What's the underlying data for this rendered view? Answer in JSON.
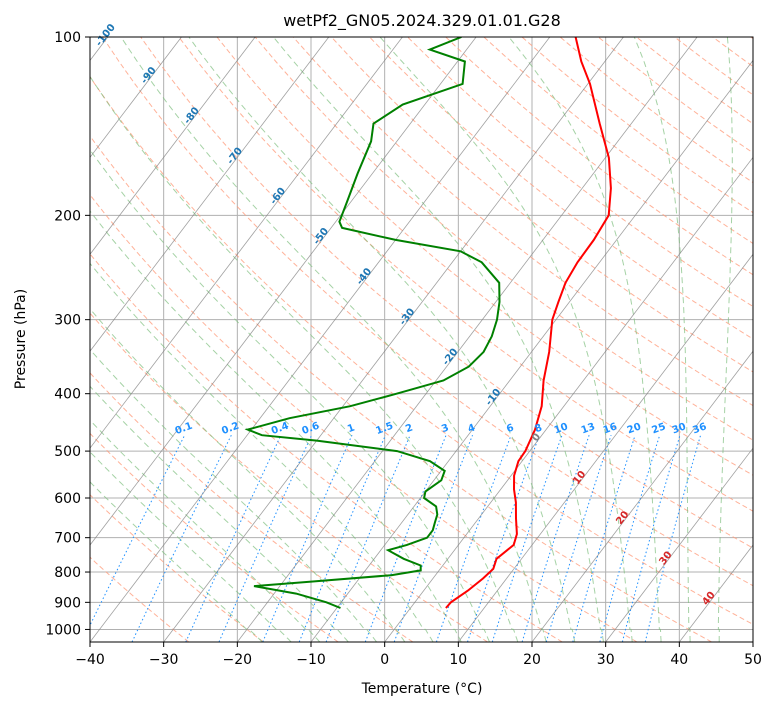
{
  "chart_data": {
    "type": "line",
    "subtype": "skew-t log-p diagram",
    "title": "wetPf2_GN05.2024.329.01.01.G28",
    "xlabel": "Temperature (°C)",
    "ylabel": "Pressure (hPa)",
    "xlim": [
      -40,
      50
    ],
    "ylim": [
      1050,
      100
    ],
    "y_scale": "log",
    "x_ticks": [
      "−40",
      "−30",
      "−20",
      "−10",
      "0",
      "10",
      "20",
      "30",
      "40",
      "50"
    ],
    "x_tick_values": [
      -40,
      -30,
      -20,
      -10,
      0,
      10,
      20,
      30,
      40,
      50
    ],
    "y_ticks": [
      "100",
      "200",
      "300",
      "400",
      "500",
      "600",
      "700",
      "800",
      "900",
      "1000"
    ],
    "y_tick_values": [
      100,
      200,
      300,
      400,
      500,
      600,
      700,
      800,
      900,
      1000
    ],
    "grid": true,
    "colors": {
      "temperature": "#ff0000",
      "dewpoint": "#008000",
      "dry_adiabat": "#ff9f80",
      "moist_adiabat": "#7fbf7f",
      "mixing_ratio": "#1e90ff",
      "isotherm": "#808080",
      "dry_adiabat_label": "#1f77b4",
      "warm_label": "#d62728"
    },
    "series": [
      {
        "color": "#ff0000",
        "pressure": [
          920,
          900,
          860,
          820,
          790,
          760,
          720,
          690,
          650,
          610,
          580,
          550,
          520,
          500,
          460,
          420,
          380,
          340,
          300,
          280,
          260,
          240,
          220,
          200,
          180,
          160,
          140,
          120,
          110,
          100
        ],
        "temperature": [
          4.8,
          4.9,
          6.0,
          6.8,
          7.2,
          6.6,
          7.5,
          6.8,
          5.1,
          3.4,
          1.8,
          0.4,
          -0.5,
          -0.6,
          -1.5,
          -3.0,
          -5.4,
          -7.6,
          -10.5,
          -11.5,
          -12.5,
          -13.0,
          -13.1,
          -13.6,
          -16.1,
          -19.5,
          -24.3,
          -29.7,
          -33.2,
          -36.5
        ]
      },
      {
        "color": "#008000",
        "pressure": [
          920,
          900,
          870,
          845,
          830,
          810,
          795,
          780,
          760,
          735,
          720,
          700,
          680,
          660,
          640,
          620,
          600,
          585,
          560,
          540,
          520,
          500,
          480,
          470,
          460,
          440,
          420,
          400,
          380,
          360,
          340,
          320,
          300,
          280,
          260,
          240,
          230,
          220,
          210,
          205,
          190,
          170,
          150,
          140,
          130,
          120,
          110,
          105,
          100
        ],
        "dewpoint": [
          -9.5,
          -12.0,
          -17.0,
          -23.5,
          -16.0,
          -6.0,
          -2.5,
          -3.0,
          -6.0,
          -9.0,
          -7.0,
          -5.0,
          -5.0,
          -5.5,
          -6.0,
          -7.0,
          -9.5,
          -10.0,
          -9.0,
          -9.5,
          -12.5,
          -18.0,
          -30.0,
          -38.0,
          -40.5,
          -36.0,
          -29.0,
          -24.0,
          -19.0,
          -17.0,
          -16.5,
          -17.0,
          -18.0,
          -19.5,
          -21.5,
          -26.0,
          -30.0,
          -40.0,
          -48.5,
          -49.5,
          -50.5,
          -52.0,
          -53.5,
          -55.0,
          -53.0,
          -47.0,
          -49.0,
          -55.0,
          -52.0
        ]
      }
    ],
    "dry_adiabat_labels": [
      "-100",
      "-90",
      "-80",
      "-70",
      "-60",
      "-50",
      "-40",
      "-30",
      "-20",
      "-10",
      "0",
      "10",
      "20",
      "30",
      "40"
    ],
    "mixing_ratio_labels": [
      "0.1",
      "0.2",
      "0.4",
      "0.6",
      "1",
      "1.5",
      "2",
      "3",
      "4",
      "6",
      "8",
      "10",
      "13",
      "16",
      "20",
      "25",
      "30",
      "36"
    ]
  }
}
